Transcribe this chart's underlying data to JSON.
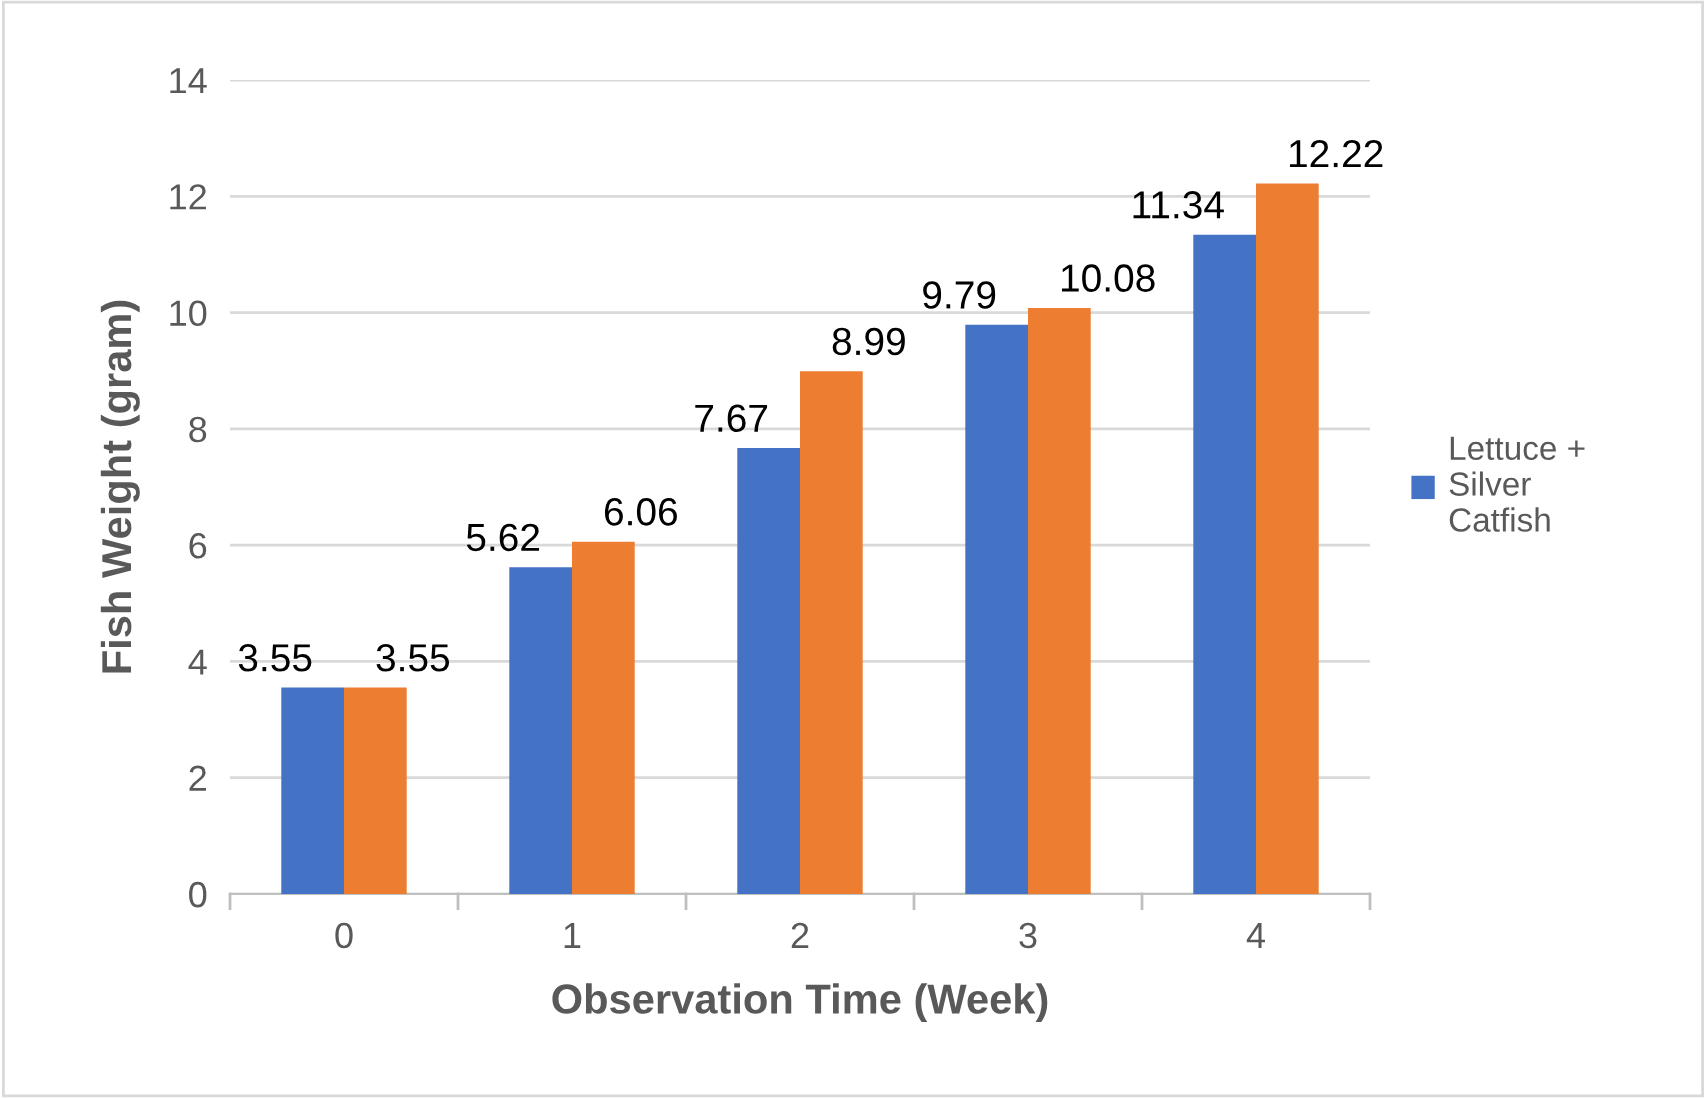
{
  "chart_data": {
    "type": "bar",
    "xlabel": "Observation Time (Week)",
    "ylabel": "Fish Weight (gram)",
    "categories": [
      "0",
      "1",
      "2",
      "3",
      "4"
    ],
    "series": [
      {
        "name": "Lettuce + Silver Catfish",
        "color": "#4472c4",
        "values": [
          3.55,
          5.62,
          7.67,
          9.79,
          11.34
        ]
      },
      {
        "color": "#ed7d31",
        "values": [
          3.55,
          6.06,
          8.99,
          10.08,
          12.22
        ]
      }
    ],
    "ylim": [
      0,
      14
    ],
    "yticks": [
      0,
      2,
      4,
      6,
      8,
      10,
      12,
      14
    ],
    "grid": "y",
    "legend": "right",
    "data_labels": true
  }
}
